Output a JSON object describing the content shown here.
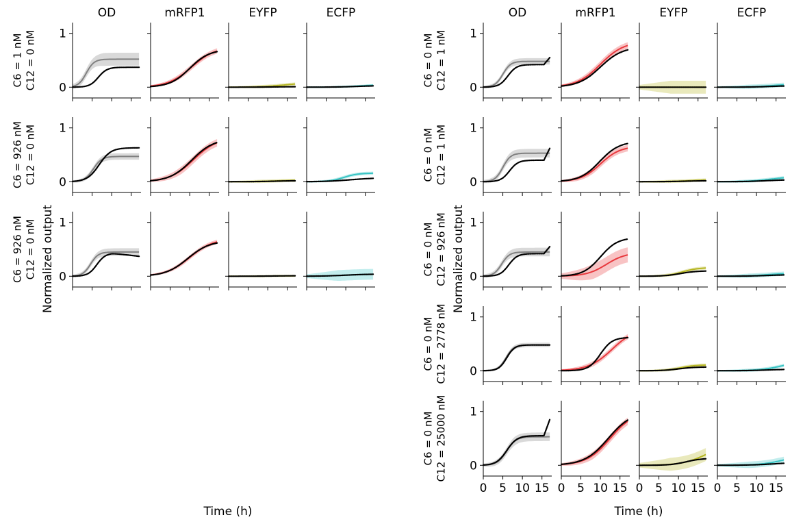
{
  "chart_data": {
    "type": "line",
    "columns": [
      "OD",
      "mRFP1",
      "EYFP",
      "ECFP"
    ],
    "xlabel": "Time (h)",
    "ylabel": "Normalized output",
    "xlim": [
      0,
      17.5
    ],
    "ylim": [
      -0.2,
      1.2
    ],
    "xticks": [
      "0",
      "5",
      "10",
      "15"
    ],
    "yticks": [
      "0",
      "1"
    ],
    "colors": {
      "OD": "#808080",
      "mRFP1": "#e8383d",
      "EYFP": "#b5b521",
      "ECFP": "#35c3c3",
      "data": "#000000"
    },
    "panels": [
      {
        "name": "left",
        "rows": [
          {
            "label1": "C6 = 1 nM",
            "label2": "C12 = 0 nM",
            "cells": [
              {
                "c": "OD",
                "mod": [
                  0.52,
                  3.5,
                  1.0
                ],
                "band": 0.12,
                "dat": [
                  0.37,
                  6.6,
                  1.1
                ]
              },
              {
                "c": "mRFP1",
                "mod": [
                  0.75,
                  10.5,
                  3.0
                ],
                "band": 0.05,
                "dat": [
                  0.7,
                  10.0,
                  2.5
                ]
              },
              {
                "c": "EYFP",
                "mod": [
                  0.08,
                  14,
                  3.0
                ],
                "band": 0.03,
                "dat": [
                  0.01,
                  12,
                  3.0
                ]
              },
              {
                "c": "ECFP",
                "mod": [
                  0.05,
                  14,
                  3.0
                ],
                "band": 0.02,
                "dat": [
                  0.03,
                  13,
                  3.0
                ]
              }
            ]
          },
          {
            "label1": "C6 = 926 nM",
            "label2": "C12 = 0 nM",
            "cells": [
              {
                "c": "OD",
                "mod": [
                  0.47,
                  5.3,
                  1.1
                ],
                "band": 0.06,
                "dat": [
                  0.63,
                  6.8,
                  1.5
                ]
              },
              {
                "c": "mRFP1",
                "mod": [
                  0.82,
                  11.0,
                  3.0
                ],
                "band": 0.07,
                "dat": [
                  0.8,
                  10.5,
                  2.8
                ]
              },
              {
                "c": "EYFP",
                "mod": [
                  0.03,
                  12,
                  3.0
                ],
                "band": 0.03,
                "dat": [
                  0.02,
                  12,
                  3.0
                ]
              },
              {
                "c": "ECFP",
                "mod": [
                  0.16,
                  9.5,
                  1.8
                ],
                "band": 0.03,
                "dat": [
                  0.07,
                  11,
                  3.0
                ]
              }
            ]
          },
          {
            "label1": "C6 = 926 nM",
            "label2": "C12 = 0 nM",
            "cells": [
              {
                "c": "OD",
                "mod": [
                  0.45,
                  4.6,
                  1.0
                ],
                "band": 0.07,
                "dat": [
                  0.43,
                  6.2,
                  1.1
                ],
                "decline": 0.06
              },
              {
                "c": "mRFP1",
                "mod": [
                  0.7,
                  10.0,
                  3.0
                ],
                "band": 0.04,
                "dat": [
                  0.66,
                  9.5,
                  2.8
                ]
              },
              {
                "c": "EYFP",
                "mod": [
                  0.01,
                  12,
                  3.0
                ],
                "band": 0.02,
                "dat": [
                  0.01,
                  12,
                  3.0
                ]
              },
              {
                "c": "ECFP",
                "mod": [
                  0.04,
                  10,
                  3.0
                ],
                "band": 0.1,
                "dat": [
                  0.04,
                  10,
                  3.0
                ]
              }
            ]
          }
        ]
      },
      {
        "name": "right",
        "rows": [
          {
            "label1": "C6 = 0 nM",
            "label2": "C12 = 1 nM",
            "cells": [
              {
                "c": "OD",
                "mod": [
                  0.48,
                  5.0,
                  1.0
                ],
                "band": 0.06,
                "dat": [
                  0.42,
                  6.3,
                  1.1
                ],
                "tail": 0.55
              },
              {
                "c": "mRFP1",
                "mod": [
                  0.85,
                  10.0,
                  3.0
                ],
                "band": 0.06,
                "dat": [
                  0.75,
                  10.0,
                  2.8
                ]
              },
              {
                "c": "EYFP",
                "mod": [
                  0.0,
                  10,
                  3.0
                ],
                "band": 0.12,
                "dat": [
                  0.0,
                  10,
                  3.0
                ]
              },
              {
                "c": "ECFP",
                "mod": [
                  0.06,
                  14,
                  3.0
                ],
                "band": 0.04,
                "dat": [
                  0.03,
                  14,
                  3.0
                ]
              }
            ]
          },
          {
            "label1": "C6 = 0 nM",
            "label2": "C12 = 1 nM",
            "cells": [
              {
                "c": "OD",
                "mod": [
                  0.53,
                  5.0,
                  1.0
                ],
                "band": 0.08,
                "dat": [
                  0.4,
                  6.7,
                  1.1
                ],
                "tail": 0.62
              },
              {
                "c": "mRFP1",
                "mod": [
                  0.66,
                  10.0,
                  2.5
                ],
                "band": 0.06,
                "dat": [
                  0.75,
                  9.8,
                  2.5
                ]
              },
              {
                "c": "EYFP",
                "mod": [
                  0.04,
                  13,
                  3.0
                ],
                "band": 0.03,
                "dat": [
                  0.02,
                  12,
                  3.0
                ]
              },
              {
                "c": "ECFP",
                "mod": [
                  0.1,
                  14,
                  3.0
                ],
                "band": 0.03,
                "dat": [
                  0.04,
                  13,
                  3.0
                ]
              }
            ]
          },
          {
            "label1": "C6 = 0 nM",
            "label2": "C12 = 926 nM",
            "cells": [
              {
                "c": "OD",
                "mod": [
                  0.45,
                  4.7,
                  1.0
                ],
                "band": 0.08,
                "dat": [
                  0.42,
                  6.5,
                  1.1
                ],
                "tail": 0.55
              },
              {
                "c": "mRFP1",
                "mod": [
                  0.44,
                  11.5,
                  2.5
                ],
                "band": 0.14,
                "dat": [
                  0.72,
                  10.0,
                  2.2
                ]
              },
              {
                "c": "EYFP",
                "mod": [
                  0.16,
                  11.0,
                  2.0
                ],
                "band": 0.03,
                "dat": [
                  0.1,
                  10.5,
                  2.0
                ]
              },
              {
                "c": "ECFP",
                "mod": [
                  0.06,
                  13,
                  3.0
                ],
                "band": 0.04,
                "dat": [
                  0.03,
                  13,
                  3.0
                ]
              }
            ]
          },
          {
            "label1": "C6 = 0 nM",
            "label2": "C12 = 2778 nM",
            "cells": [
              {
                "c": "OD",
                "mod": [
                  0.48,
                  5.8,
                  1.0
                ],
                "band": 0.04,
                "dat": [
                  0.48,
                  6.0,
                  1.0
                ]
              },
              {
                "c": "mRFP1",
                "mod": [
                  0.8,
                  13.0,
                  3.0
                ],
                "band": 0.05,
                "dat": [
                  0.62,
                  10.0,
                  1.5
                ]
              },
              {
                "c": "EYFP",
                "mod": [
                  0.11,
                  10.5,
                  2.0
                ],
                "band": 0.03,
                "dat": [
                  0.07,
                  10.0,
                  2.0
                ]
              },
              {
                "c": "ECFP",
                "mod": [
                  0.2,
                  17.0,
                  3.0
                ],
                "band": 0.03,
                "dat": [
                  0.03,
                  13,
                  3.0
                ]
              }
            ]
          },
          {
            "label1": "C6 = 0 nM",
            "label2": "C12 = 25000 nM",
            "cells": [
              {
                "c": "OD",
                "mod": [
                  0.53,
                  6.0,
                  1.2
                ],
                "band": 0.08,
                "dat": [
                  0.55,
                  6.0,
                  1.3
                ],
                "tail": 0.85
              },
              {
                "c": "mRFP1",
                "mod": [
                  1.0,
                  12.5,
                  3.0
                ],
                "band": 0.07,
                "dat": [
                  1.0,
                  12.0,
                  3.0
                ]
              },
              {
                "c": "EYFP",
                "mod": [
                  0.4,
                  17.0,
                  3.0
                ],
                "band": 0.12,
                "dat": [
                  0.13,
                  12.0,
                  2.0
                ]
              },
              {
                "c": "ECFP",
                "mod": [
                  0.2,
                  17.0,
                  3.0
                ],
                "band": 0.06,
                "dat": [
                  0.05,
                  14,
                  3.0
                ]
              }
            ]
          }
        ]
      }
    ]
  }
}
